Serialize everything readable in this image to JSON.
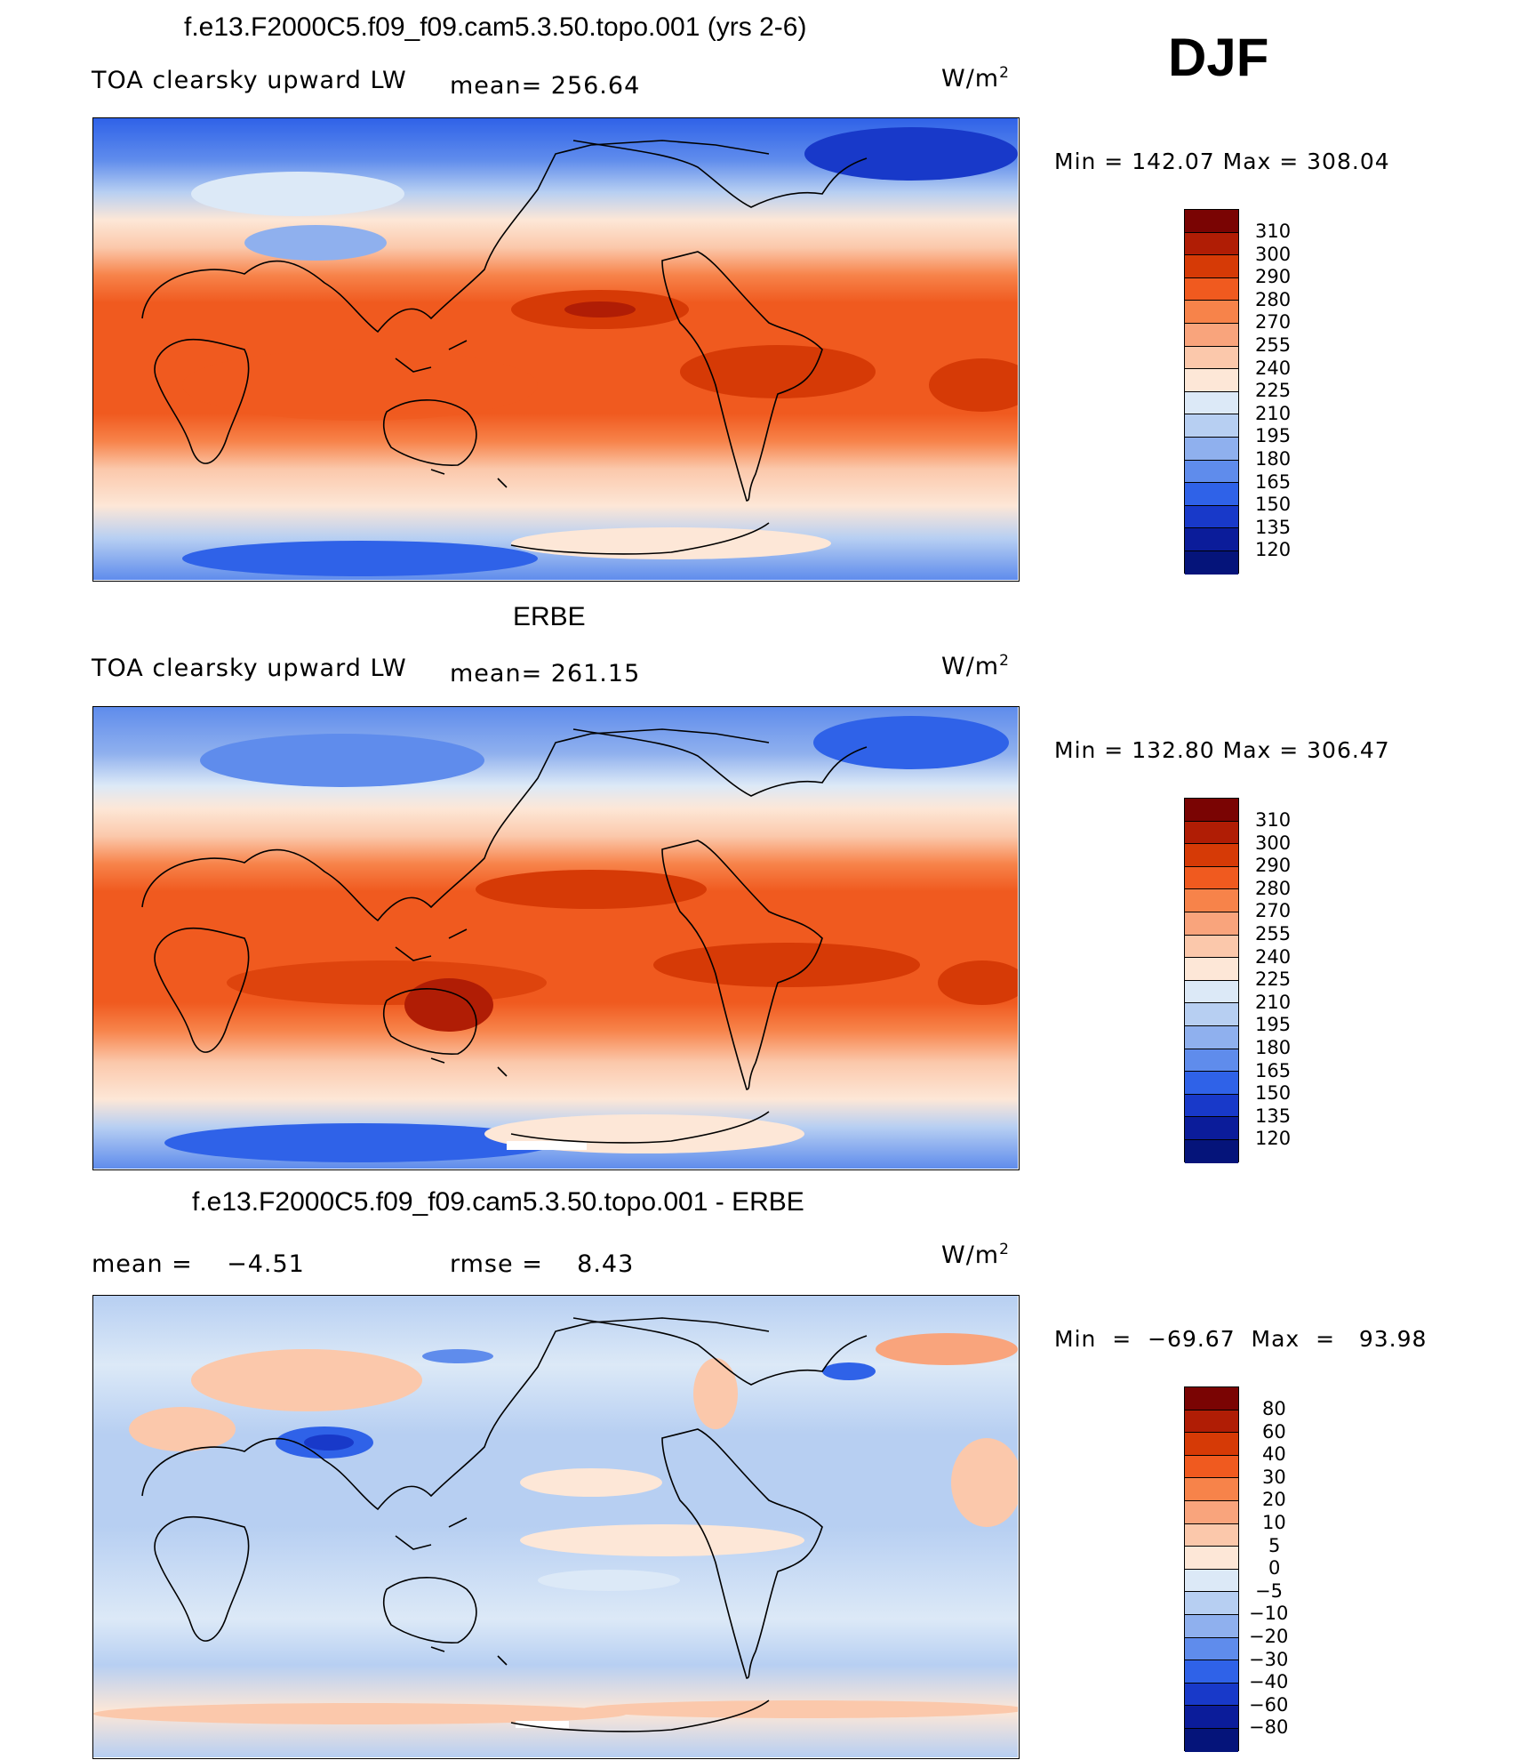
{
  "season": "DJF",
  "panels": [
    {
      "title": "f.e13.F2000C5.f09_f09.cam5.3.50.topo.001 (yrs 2-6)",
      "left_label": "TOA clearsky upward LW",
      "center_label": "mean= 256.64",
      "unit_base": "W/m",
      "unit_exp": "2",
      "minmax": "Min  =  142.07  Max  =  308.04",
      "legend": {
        "labels": [
          "310",
          "300",
          "290",
          "280",
          "270",
          "255",
          "240",
          "225",
          "210",
          "195",
          "180",
          "165",
          "150",
          "135",
          "120"
        ],
        "colors": [
          "#7a0403",
          "#b01d05",
          "#d63a06",
          "#f05a1f",
          "#f7834a",
          "#f9a47c",
          "#fbc8ab",
          "#fde7d7",
          "#dce9f7",
          "#b7cff2",
          "#8fb0ee",
          "#5f8cec",
          "#2f62e8",
          "#1839c9",
          "#0b1c9a",
          "#05147a"
        ]
      },
      "map": {
        "type": "filled-contour world map (model)",
        "bands": [
          {
            "lat_from": 90,
            "lat_to": 70,
            "value_band": "150-180",
            "color": "#2f62e8"
          },
          {
            "lat_from": 70,
            "lat_to": 55,
            "value_band": "195-225",
            "color": "#b7cff2"
          },
          {
            "lat_from": 55,
            "lat_to": 40,
            "value_band": "240-255",
            "color": "#fbc8ab"
          },
          {
            "lat_from": 40,
            "lat_to": 25,
            "value_band": "270-280",
            "color": "#f7834a"
          },
          {
            "lat_from": 25,
            "lat_to": -30,
            "value_band": "280-300",
            "color": "#f05a1f"
          },
          {
            "lat_from": -30,
            "lat_to": -45,
            "value_band": "270-280",
            "color": "#f7834a"
          },
          {
            "lat_from": -45,
            "lat_to": -60,
            "value_band": "240-255",
            "color": "#fbc8ab"
          },
          {
            "lat_from": -60,
            "lat_to": -70,
            "value_band": "225-240",
            "color": "#fde7d7"
          },
          {
            "lat_from": -70,
            "lat_to": -90,
            "value_band": "165-195",
            "color": "#5f8cec"
          }
        ]
      }
    },
    {
      "title": "ERBE",
      "left_label": "TOA clearsky upward LW",
      "center_label": "mean= 261.15",
      "unit_base": "W/m",
      "unit_exp": "2",
      "minmax": "Min  =  132.80  Max  =  306.47",
      "legend": {
        "labels": [
          "310",
          "300",
          "290",
          "280",
          "270",
          "255",
          "240",
          "225",
          "210",
          "195",
          "180",
          "165",
          "150",
          "135",
          "120"
        ],
        "colors": [
          "#7a0403",
          "#b01d05",
          "#d63a06",
          "#f05a1f",
          "#f7834a",
          "#f9a47c",
          "#fbc8ab",
          "#fde7d7",
          "#dce9f7",
          "#b7cff2",
          "#8fb0ee",
          "#5f8cec",
          "#2f62e8",
          "#1839c9",
          "#0b1c9a",
          "#05147a"
        ]
      },
      "map": {
        "type": "filled-contour world map (observed)",
        "bands": [
          {
            "lat_from": 90,
            "lat_to": 70,
            "value_band": "165-195",
            "color": "#5f8cec"
          },
          {
            "lat_from": 70,
            "lat_to": 55,
            "value_band": "195-225",
            "color": "#b7cff2"
          },
          {
            "lat_from": 55,
            "lat_to": 40,
            "value_band": "240-255",
            "color": "#fbc8ab"
          },
          {
            "lat_from": 40,
            "lat_to": 25,
            "value_band": "270-280",
            "color": "#f7834a"
          },
          {
            "lat_from": 25,
            "lat_to": -30,
            "value_band": "280-290",
            "color": "#f05a1f"
          },
          {
            "lat_from": -30,
            "lat_to": -45,
            "value_band": "270-280",
            "color": "#f7834a"
          },
          {
            "lat_from": -45,
            "lat_to": -60,
            "value_band": "240-255",
            "color": "#fbc8ab"
          },
          {
            "lat_from": -60,
            "lat_to": -70,
            "value_band": "225-240",
            "color": "#fde7d7"
          },
          {
            "lat_from": -70,
            "lat_to": -90,
            "value_band": "165-195",
            "color": "#5f8cec"
          }
        ]
      }
    },
    {
      "title": "f.e13.F2000C5.f09_f09.cam5.3.50.topo.001 - ERBE",
      "left_label": "mean =    −4.51",
      "center_label": "rmse =    8.43",
      "unit_base": "W/m",
      "unit_exp": "2",
      "minmax": "Min  =  −69.67  Max  =   93.98",
      "legend": {
        "labels": [
          "80",
          "60",
          "40",
          "30",
          "20",
          "10",
          "5",
          "0",
          "−5",
          "−10",
          "−20",
          "−30",
          "−40",
          "−60",
          "−80"
        ],
        "colors": [
          "#7a0403",
          "#b01d05",
          "#d63a06",
          "#f05a1f",
          "#f7834a",
          "#f9a47c",
          "#fbc8ab",
          "#fde7d7",
          "#dce9f7",
          "#b7cff2",
          "#8fb0ee",
          "#5f8cec",
          "#2f62e8",
          "#1839c9",
          "#0b1c9a",
          "#05147a"
        ]
      },
      "map": {
        "type": "filled-contour world map (difference)",
        "bands": [
          {
            "lat_from": 90,
            "lat_to": 60,
            "value_band": "-10 to 10",
            "color": "#b7cff2"
          },
          {
            "lat_from": 60,
            "lat_to": 40,
            "value_band": "-5 to 5",
            "color": "#dce9f7"
          },
          {
            "lat_from": 40,
            "lat_to": -40,
            "value_band": "-10 to -5",
            "color": "#b7cff2"
          },
          {
            "lat_from": -40,
            "lat_to": -70,
            "value_band": "-5 to 0",
            "color": "#dce9f7"
          },
          {
            "lat_from": -70,
            "lat_to": -90,
            "value_band": "-10 to -5",
            "color": "#b7cff2"
          }
        ]
      }
    }
  ]
}
